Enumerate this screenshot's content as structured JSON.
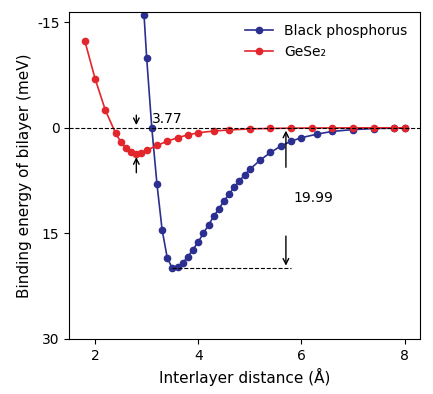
{
  "chart_data": {
    "type": "line",
    "x_label": "Interlayer distance (Å)",
    "y_label": "Binding energy of bilayer (meV)",
    "xlim": [
      1.5,
      8.3
    ],
    "xticks": [
      2,
      4,
      6,
      8
    ],
    "ylim": [
      30,
      -16.5
    ],
    "yticks": [
      -15,
      0,
      15,
      30
    ],
    "baseline": 0,
    "legend": "upper right",
    "annotations": [
      "3.77",
      "19.99"
    ],
    "series": [
      {
        "name": "Black phosphorus",
        "color": "#2b2f8f",
        "marker": "o",
        "line_style": "solid",
        "x": [
          2.95,
          3.0,
          3.1,
          3.2,
          3.3,
          3.4,
          3.5,
          3.6,
          3.7,
          3.8,
          3.9,
          4.0,
          4.1,
          4.2,
          4.3,
          4.4,
          4.5,
          4.6,
          4.7,
          4.8,
          4.9,
          5.0,
          5.2,
          5.4,
          5.6,
          5.8,
          6.0,
          6.3,
          6.6,
          7.0,
          7.4,
          7.8,
          8.0
        ],
        "values": [
          -16,
          -10,
          0,
          8,
          14.5,
          18.5,
          19.99,
          19.8,
          19.2,
          18.3,
          17.3,
          16.2,
          15.0,
          13.8,
          12.6,
          11.5,
          10.4,
          9.4,
          8.4,
          7.5,
          6.7,
          5.9,
          4.6,
          3.5,
          2.6,
          1.9,
          1.4,
          0.9,
          0.5,
          0.25,
          0.1,
          0.05,
          0
        ]
      },
      {
        "name": "GeSe₂",
        "color": "#e3262b",
        "marker": "o",
        "line_style": "solid",
        "x": [
          1.8,
          2.0,
          2.2,
          2.4,
          2.5,
          2.6,
          2.7,
          2.8,
          2.9,
          3.0,
          3.2,
          3.4,
          3.6,
          3.8,
          4.0,
          4.3,
          4.6,
          5.0,
          5.4,
          5.8,
          6.2,
          6.6,
          7.0,
          7.4,
          7.8,
          8.0
        ],
        "values": [
          -12.4,
          -7.0,
          -2.5,
          0.8,
          2.0,
          2.9,
          3.5,
          3.77,
          3.6,
          3.2,
          2.5,
          1.9,
          1.4,
          1.0,
          0.7,
          0.45,
          0.3,
          0.15,
          0.08,
          0.04,
          0.02,
          0.01,
          0,
          0,
          0,
          0
        ]
      }
    ]
  }
}
